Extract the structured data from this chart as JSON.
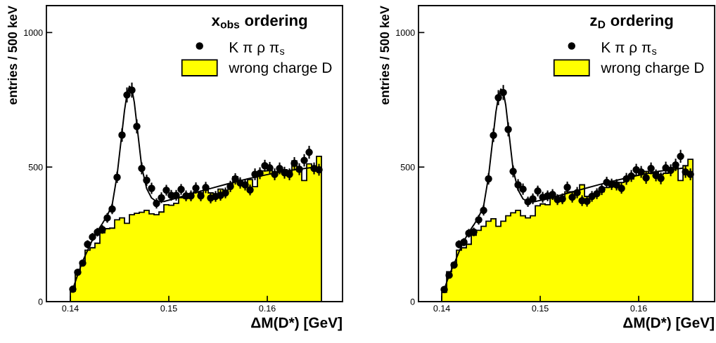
{
  "chart_data": [
    {
      "type": "histogram",
      "title": "x$_{obs}$ ordering",
      "xlabel": "ΔM(D*) [GeV]",
      "ylabel": "entries / 500 keV",
      "xlim": [
        0.13757,
        0.16764
      ],
      "ylim": [
        0,
        1100
      ],
      "xticks": [
        0.14,
        0.15,
        0.16
      ],
      "yticks": [
        0,
        500,
        1000
      ],
      "legend": "top right",
      "series": [
        {
          "type": "scatter",
          "name": "K π ρ π$_{s}$",
          "color": "#000000",
          "marker": "circle",
          "x": [
            0.14025,
            0.14075,
            0.14125,
            0.14175,
            0.14225,
            0.14275,
            0.14325,
            0.14375,
            0.14425,
            0.14475,
            0.14525,
            0.14575,
            0.14625,
            0.14675,
            0.14725,
            0.14775,
            0.14825,
            0.14875,
            0.14925,
            0.14975,
            0.15025,
            0.15075,
            0.15125,
            0.15175,
            0.15225,
            0.15275,
            0.15325,
            0.15375,
            0.15425,
            0.15475,
            0.15525,
            0.15575,
            0.15625,
            0.15675,
            0.15725,
            0.15775,
            0.15825,
            0.15875,
            0.15925,
            0.15975,
            0.16025,
            0.16075,
            0.16125,
            0.16175,
            0.16225,
            0.16275,
            0.16325,
            0.16375,
            0.16425,
            0.16475,
            0.16525
          ],
          "values": [
            46,
            109,
            143,
            213,
            240,
            258,
            268,
            311,
            344,
            462,
            619,
            768,
            786,
            651,
            495,
            451,
            421,
            365,
            386,
            414,
            395,
            395,
            417,
            393,
            393,
            422,
            393,
            424,
            385,
            391,
            395,
            404,
            428,
            456,
            441,
            434,
            415,
            473,
            477,
            505,
            497,
            473,
            495,
            479,
            473,
            514,
            492,
            525,
            555,
            495,
            490
          ],
          "errors": [
            7,
            10,
            12,
            15,
            15,
            16,
            16,
            18,
            19,
            21,
            25,
            28,
            28,
            26,
            22,
            21,
            21,
            19,
            20,
            20,
            20,
            20,
            20,
            20,
            20,
            21,
            20,
            21,
            20,
            20,
            20,
            20,
            21,
            21,
            21,
            21,
            20,
            22,
            22,
            22,
            22,
            22,
            22,
            22,
            22,
            23,
            22,
            23,
            24,
            22,
            22
          ]
        },
        {
          "name": "wrong charge D",
          "color": "#ffff00",
          "bins": [
            0.14,
            0.1405,
            0.141,
            0.1415,
            0.142,
            0.1425,
            0.143,
            0.1435,
            0.144,
            0.1445,
            0.145,
            0.1455,
            0.146,
            0.1465,
            0.147,
            0.1475,
            0.148,
            0.1485,
            0.149,
            0.1495,
            0.15,
            0.1505,
            0.151,
            0.1515,
            0.152,
            0.1525,
            0.153,
            0.1535,
            0.154,
            0.1545,
            0.155,
            0.1555,
            0.156,
            0.1565,
            0.157,
            0.1575,
            0.158,
            0.1585,
            0.159,
            0.1595,
            0.16,
            0.1605,
            0.161,
            0.1615,
            0.162,
            0.1625,
            0.163,
            0.1635,
            0.164,
            0.1645,
            0.165,
            0.1655
          ],
          "values": [
            39,
            113,
            148,
            191,
            200,
            217,
            256,
            271,
            273,
            304,
            311,
            291,
            323,
            328,
            332,
            339,
            326,
            323,
            333,
            360,
            358,
            365,
            386,
            384,
            391,
            408,
            404,
            415,
            404,
            399,
            418,
            404,
            430,
            464,
            443,
            436,
            453,
            427,
            482,
            486,
            488,
            482,
            484,
            490,
            477,
            523,
            486,
            450,
            512,
            499,
            540
          ]
        },
        {
          "type": "line",
          "color": "#000000",
          "line_style": "solid",
          "x": [
            0.14025,
            0.14075,
            0.14125,
            0.14175,
            0.14225,
            0.14275,
            0.14325,
            0.14375,
            0.14425,
            0.14475,
            0.14525,
            0.1455,
            0.14575,
            0.146,
            0.14625,
            0.1465,
            0.14675,
            0.14725,
            0.14775,
            0.14825,
            0.14875,
            0.1495,
            0.1505,
            0.152,
            0.154,
            0.156,
            0.158,
            0.16,
            0.162,
            0.1645
          ],
          "values": [
            46,
            100,
            150,
            190,
            230,
            262,
            290,
            320,
            360,
            470,
            630,
            710,
            770,
            800,
            790,
            740,
            660,
            500,
            420,
            385,
            372,
            372,
            382,
            398,
            418,
            438,
            456,
            472,
            486,
            498
          ]
        }
      ]
    },
    {
      "type": "histogram",
      "title": "z$_{D}$ ordering",
      "xlabel": "ΔM(D*) [GeV]",
      "ylabel": "entries / 500 keV",
      "xlim": [
        0.13764,
        0.16771
      ],
      "ylim": [
        0,
        1100
      ],
      "xticks": [
        0.14,
        0.15,
        0.16
      ],
      "yticks": [
        0,
        500,
        1000
      ],
      "legend": "top right",
      "series": [
        {
          "type": "scatter",
          "name": "K π ρ π$_{s}$",
          "color": "#000000",
          "marker": "circle",
          "x": [
            0.14025,
            0.14075,
            0.14125,
            0.14175,
            0.14225,
            0.14275,
            0.14325,
            0.14375,
            0.14425,
            0.14475,
            0.14525,
            0.14575,
            0.14625,
            0.14675,
            0.14725,
            0.14775,
            0.14825,
            0.14875,
            0.14925,
            0.14975,
            0.15025,
            0.15075,
            0.15125,
            0.15175,
            0.15225,
            0.15275,
            0.15325,
            0.15375,
            0.15425,
            0.15475,
            0.15525,
            0.15575,
            0.15625,
            0.15675,
            0.15725,
            0.15775,
            0.15825,
            0.15875,
            0.15925,
            0.15975,
            0.16025,
            0.16075,
            0.16125,
            0.16175,
            0.16225,
            0.16275,
            0.16325,
            0.16375,
            0.16425,
            0.16475,
            0.16525
          ],
          "values": [
            45,
            98,
            136,
            213,
            221,
            254,
            259,
            304,
            339,
            456,
            618,
            758,
            777,
            640,
            484,
            434,
            418,
            371,
            382,
            411,
            388,
            393,
            398,
            379,
            382,
            425,
            388,
            405,
            375,
            373,
            391,
            401,
            417,
            443,
            436,
            434,
            421,
            456,
            467,
            490,
            482,
            460,
            495,
            469,
            458,
            497,
            488,
            508,
            540,
            482,
            473
          ],
          "errors": [
            7,
            10,
            12,
            15,
            15,
            16,
            16,
            18,
            19,
            21,
            25,
            28,
            28,
            26,
            22,
            21,
            21,
            19,
            20,
            20,
            20,
            20,
            20,
            20,
            20,
            21,
            20,
            21,
            20,
            20,
            20,
            20,
            21,
            21,
            21,
            21,
            20,
            22,
            22,
            22,
            22,
            22,
            22,
            22,
            22,
            23,
            22,
            23,
            24,
            22,
            22
          ]
        },
        {
          "name": "wrong charge D",
          "color": "#ffff00",
          "bins": [
            0.14,
            0.1405,
            0.141,
            0.1415,
            0.142,
            0.1425,
            0.143,
            0.1435,
            0.144,
            0.1445,
            0.145,
            0.1455,
            0.146,
            0.1465,
            0.147,
            0.1475,
            0.148,
            0.1485,
            0.149,
            0.1495,
            0.15,
            0.1505,
            0.151,
            0.1515,
            0.152,
            0.1525,
            0.153,
            0.1535,
            0.154,
            0.1545,
            0.155,
            0.1555,
            0.156,
            0.1565,
            0.157,
            0.1575,
            0.158,
            0.1585,
            0.159,
            0.1595,
            0.16,
            0.1605,
            0.161,
            0.1615,
            0.162,
            0.1625,
            0.163,
            0.1635,
            0.164,
            0.1645,
            0.165,
            0.1655
          ],
          "values": [
            35,
            111,
            143,
            191,
            200,
            213,
            247,
            265,
            280,
            299,
            308,
            280,
            299,
            319,
            330,
            339,
            319,
            311,
            319,
            356,
            363,
            360,
            384,
            378,
            386,
            408,
            408,
            399,
            434,
            391,
            392,
            404,
            408,
            424,
            447,
            443,
            443,
            450,
            456,
            469,
            479,
            484,
            477,
            482,
            473,
            477,
            484,
            499,
            450,
            505,
            529
          ]
        },
        {
          "type": "line",
          "color": "#000000",
          "line_style": "solid",
          "x": [
            0.14025,
            0.14075,
            0.14125,
            0.14175,
            0.14225,
            0.14275,
            0.14325,
            0.14375,
            0.14425,
            0.14475,
            0.14525,
            0.1455,
            0.14575,
            0.146,
            0.14625,
            0.1465,
            0.14675,
            0.14725,
            0.14775,
            0.14825,
            0.14875,
            0.1495,
            0.1505,
            0.152,
            0.154,
            0.156,
            0.158,
            0.16,
            0.162,
            0.1645
          ],
          "values": [
            45,
            98,
            140,
            185,
            225,
            258,
            285,
            315,
            355,
            465,
            625,
            705,
            760,
            790,
            780,
            730,
            650,
            490,
            415,
            382,
            370,
            372,
            380,
            395,
            415,
            435,
            453,
            470,
            484,
            496
          ]
        }
      ]
    }
  ]
}
